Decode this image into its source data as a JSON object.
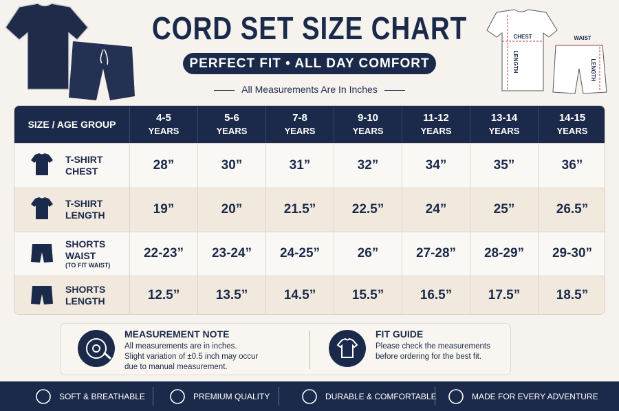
{
  "header": {
    "title": "CORD SET SIZE CHART",
    "subtitle": "PERFECT FIT • ALL DAY COMFORT",
    "note": "All Measurements Are In Inches"
  },
  "diagram": {
    "shirt": [
      "CHEST",
      "LENGTH"
    ],
    "shorts": [
      "WAIST",
      "LENGTH"
    ]
  },
  "table": {
    "corner": "SIZE / AGE GROUP",
    "columns": [
      [
        "4-5",
        "YEARS"
      ],
      [
        "5-6",
        "YEARS"
      ],
      [
        "7-8",
        "YEARS"
      ],
      [
        "9-10",
        "YEARS"
      ],
      [
        "11-12",
        "YEARS"
      ],
      [
        "13-14",
        "YEARS"
      ],
      [
        "14-15",
        "YEARS"
      ]
    ],
    "rows": [
      {
        "label": [
          "T-SHIRT",
          "CHEST"
        ],
        "values": [
          "28”",
          "30”",
          "31”",
          "32”",
          "34”",
          "35”",
          "36”"
        ]
      },
      {
        "label": [
          "T-SHIRT",
          "LENGTH"
        ],
        "values": [
          "19”",
          "20”",
          "21.5”",
          "22.5”",
          "24”",
          "25”",
          "26.5”"
        ]
      },
      {
        "label": [
          "SHORTS",
          "WAIST"
        ],
        "sub": "(TO FIT WAIST)",
        "values": [
          "22-23”",
          "23-24”",
          "24-25”",
          "26”",
          "27-28”",
          "28-29”",
          "29-30”"
        ]
      },
      {
        "label": [
          "SHORTS",
          "LENGTH"
        ],
        "values": [
          "12.5”",
          "13.5”",
          "14.5”",
          "15.5”",
          "16.5”",
          "17.5”",
          "18.5”"
        ]
      }
    ]
  },
  "notes": [
    {
      "title": "MEASUREMENT NOTE",
      "lines": [
        "All measurements are in inches.",
        "Slight variation of ±0.5 inch may occur",
        "due to manual measurement."
      ]
    },
    {
      "title": "FIT GUIDE",
      "lines": [
        "Please check the measurements",
        "before ordering for the best fit."
      ]
    }
  ],
  "footer": [
    "SOFT & BREATHABLE",
    "PREMIUM QUALITY",
    "DURABLE & COMFORTABLE",
    "MADE FOR EVERY ADVENTURE"
  ]
}
